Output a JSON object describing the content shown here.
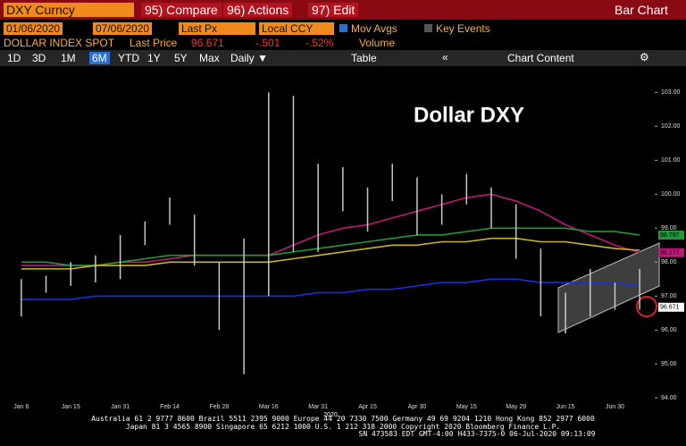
{
  "toolbar": {
    "security": "DXY Curncy",
    "compare": "95) Compare",
    "actions": "96) Actions",
    "edit": "97) Edit",
    "view": "Bar Chart",
    "start": "01/06/2020",
    "end": "07/06/2020",
    "field": "Last Px",
    "currency": "Local CCY",
    "mov_avgs": "Mov Avgs",
    "key_events": "Key Events",
    "name": "DOLLAR INDEX SPOT",
    "last_price_label": "Last Price",
    "last_price": "96.671",
    "change": "-.501",
    "change_pct": "-.52%",
    "volume": "Volume",
    "periods": [
      "1D",
      "3D",
      "1M",
      "6M",
      "YTD",
      "1Y",
      "5Y",
      "Max"
    ],
    "frequency": "Daily ▼",
    "table": "Table",
    "chart_content": "Chart Content"
  },
  "chart_data": {
    "type": "hilo",
    "title": "Dollar DXY",
    "year": "2020",
    "categories": [
      "Jan 6",
      null,
      "Jan 15",
      null,
      "Jan 31",
      null,
      "Feb 14",
      null,
      "Feb 28",
      null,
      "Mar 16",
      null,
      "Mar 31",
      null,
      "Apr 15",
      null,
      "Apr 30",
      null,
      "May 15",
      null,
      "May 29",
      null,
      "Jun 15",
      null,
      "Jun 30",
      null
    ],
    "low": [
      96.4,
      97.1,
      97.3,
      97.4,
      97.5,
      98.5,
      99.1,
      97.9,
      96.0,
      94.7,
      97.0,
      98.3,
      98.3,
      99.5,
      98.9,
      99.8,
      98.8,
      99.1,
      99.7,
      99.0,
      98.1,
      96.4,
      95.9,
      96.4,
      96.6,
      96.6
    ],
    "high": [
      97.5,
      97.6,
      98.0,
      98.2,
      98.8,
      99.2,
      99.9,
      99.4,
      98.0,
      98.7,
      103.0,
      102.9,
      100.9,
      100.8,
      100.2,
      100.9,
      100.5,
      100.0,
      100.6,
      100.2,
      99.7,
      98.4,
      97.1,
      97.8,
      97.4,
      97.8
    ],
    "bar_color": "#c8c8c8",
    "series": [
      {
        "color": "#c0187a",
        "values": [
          97.9,
          97.9,
          97.9,
          97.9,
          98.0,
          98.0,
          98.1,
          98.2,
          98.2,
          98.2,
          98.2,
          98.5,
          98.8,
          99.0,
          99.1,
          99.3,
          99.5,
          99.7,
          99.9,
          100.0,
          99.8,
          99.5,
          99.1,
          98.8,
          98.5,
          98.28
        ]
      },
      {
        "color": "#1f9a3a",
        "values": [
          98.0,
          98.0,
          97.9,
          97.9,
          98.0,
          98.1,
          98.2,
          98.2,
          98.2,
          98.2,
          98.2,
          98.3,
          98.4,
          98.5,
          98.6,
          98.7,
          98.8,
          98.8,
          98.9,
          99.0,
          99.0,
          99.0,
          99.0,
          98.9,
          98.9,
          98.8
        ]
      },
      {
        "color": "#c9b420",
        "values": [
          97.8,
          97.8,
          97.8,
          97.9,
          97.9,
          97.9,
          98.0,
          98.0,
          98.0,
          98.0,
          98.0,
          98.1,
          98.2,
          98.3,
          98.4,
          98.5,
          98.5,
          98.6,
          98.6,
          98.7,
          98.7,
          98.6,
          98.6,
          98.5,
          98.4,
          98.35
        ]
      },
      {
        "color": "#1a2ee0",
        "values": [
          96.9,
          96.9,
          96.9,
          97.0,
          97.0,
          97.0,
          97.0,
          97.0,
          97.0,
          97.0,
          97.0,
          97.0,
          97.1,
          97.1,
          97.2,
          97.2,
          97.3,
          97.4,
          97.4,
          97.5,
          97.5,
          97.4,
          97.4,
          97.4,
          97.4,
          97.3
        ]
      }
    ],
    "price_tags": [
      {
        "value": 98.797,
        "color": "#1f9a3a"
      },
      {
        "value": 98.277,
        "color": "#c0187a"
      },
      {
        "value": 96.671,
        "color": "#ffffff"
      }
    ],
    "ylim": [
      93.9,
      103.3
    ],
    "yticks": [
      {
        "value": 94,
        "label": "94.00"
      },
      {
        "value": 95,
        "label": "95.00"
      },
      {
        "value": 96,
        "label": "96.00"
      },
      {
        "value": 97,
        "label": "97.00"
      },
      {
        "value": 98,
        "label": "98.00"
      },
      {
        "value": 99,
        "label": "99.00"
      },
      {
        "value": 100,
        "label": "100.00"
      },
      {
        "value": 101,
        "label": "101.00"
      },
      {
        "value": 102,
        "label": "102.00"
      },
      {
        "value": 103,
        "label": "103.00"
      }
    ]
  },
  "footer": [
    "Australia 61 2 9777 8600 Brazil 5511 2395 9000 Europe 44 20 7330 7500 Germany 49 69 9204 1210 Hong Kong 852 2977 6000",
    "Japan 81 3 4565 8900 Singapore 65 6212 1000 U.S. 1 212 318 2000 Copyright 2020 Bloomberg Finance L.P.",
    "SN 473583 EDT GMT-4:00 H433-7375-0 06-Jul-2020 09:13:09"
  ]
}
